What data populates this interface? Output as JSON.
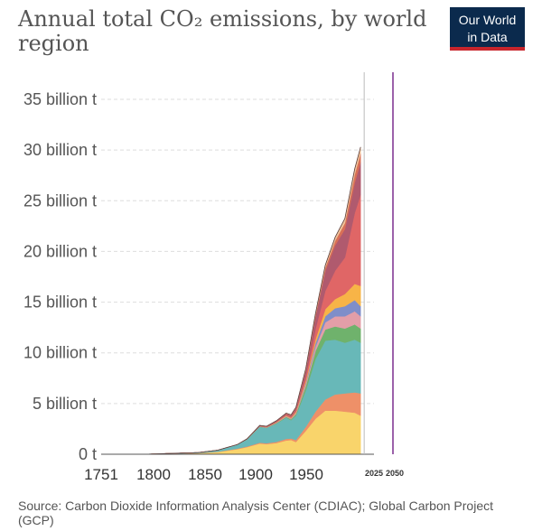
{
  "title": "Annual total CO₂ emissions, by world region",
  "logo": {
    "line1": "Our World",
    "line2": "in Data"
  },
  "source": "Source: Carbon Dioxide Information Analysis Center (CDIAC); Global Carbon Project (GCP)",
  "chart_data": {
    "type": "area",
    "stacked": true,
    "title": "Annual total CO₂ emissions, by world region",
    "xlabel": "",
    "ylabel": "",
    "xlim": [
      1751,
      2050
    ],
    "ylim": [
      0,
      35000000000
    ],
    "grid": true,
    "x_ticks": [
      "1751",
      "1800",
      "1850",
      "1900",
      "1950"
    ],
    "x_ticks_small": [
      "2025",
      "2050"
    ],
    "y_ticks": [
      {
        "value": 0,
        "label": "0 t"
      },
      {
        "value": 5000000000,
        "label": "5 billion t"
      },
      {
        "value": 10000000000,
        "label": "10 billion t"
      },
      {
        "value": 15000000000,
        "label": "15 billion t"
      },
      {
        "value": 20000000000,
        "label": "20 billion t"
      },
      {
        "value": 25000000000,
        "label": "25 billion t"
      },
      {
        "value": 30000000000,
        "label": "30 billion t"
      },
      {
        "value": 35000000000,
        "label": "35 billion t"
      }
    ],
    "x": [
      1751,
      1800,
      1850,
      1870,
      1890,
      1900,
      1913,
      1920,
      1930,
      1940,
      1945,
      1950,
      1960,
      1970,
      1980,
      1990,
      2000,
      2010,
      2016
    ],
    "series": [
      {
        "color": "#f9d46b",
        "values": [
          0.0,
          0.02,
          0.1,
          0.22,
          0.5,
          0.7,
          1.05,
          1.0,
          1.1,
          1.35,
          1.4,
          1.2,
          2.3,
          3.5,
          4.3,
          4.3,
          4.2,
          4.1,
          3.8
        ]
      },
      {
        "color": "#ee9068",
        "values": [
          0.0,
          0.0,
          0.02,
          0.03,
          0.05,
          0.07,
          0.09,
          0.09,
          0.12,
          0.16,
          0.16,
          0.2,
          0.4,
          0.7,
          1.1,
          1.6,
          1.8,
          2.0,
          2.2
        ]
      },
      {
        "color": "#68b8b8",
        "values": [
          0.0,
          0.0,
          0.05,
          0.15,
          0.4,
          0.7,
          1.55,
          1.5,
          1.8,
          2.1,
          1.8,
          2.4,
          3.6,
          5.2,
          5.8,
          5.4,
          5.0,
          5.2,
          5.0
        ]
      },
      {
        "color": "#6fb26c",
        "values": [
          0.0,
          0.0,
          0.0,
          0.0,
          0.0,
          0.01,
          0.03,
          0.03,
          0.05,
          0.08,
          0.09,
          0.15,
          0.4,
          0.8,
          1.1,
          1.3,
          1.4,
          1.5,
          1.4
        ]
      },
      {
        "color": "#e39ea8",
        "values": [
          0.0,
          0.0,
          0.0,
          0.0,
          0.0,
          0.01,
          0.02,
          0.02,
          0.03,
          0.05,
          0.05,
          0.08,
          0.2,
          0.4,
          0.7,
          1.0,
          1.2,
          1.3,
          1.2
        ]
      },
      {
        "color": "#7f8ec9",
        "values": [
          0.0,
          0.0,
          0.0,
          0.0,
          0.0,
          0.0,
          0.01,
          0.01,
          0.02,
          0.03,
          0.03,
          0.05,
          0.15,
          0.35,
          0.6,
          0.8,
          1.0,
          1.1,
          1.0
        ]
      },
      {
        "color": "#f7b447",
        "values": [
          0.0,
          0.0,
          0.0,
          0.0,
          0.0,
          0.01,
          0.02,
          0.02,
          0.03,
          0.05,
          0.06,
          0.1,
          0.2,
          0.4,
          0.7,
          0.9,
          1.2,
          1.6,
          2.0
        ]
      },
      {
        "color": "#e06666",
        "values": [
          0.0,
          0.0,
          0.0,
          0.0,
          0.0,
          0.01,
          0.02,
          0.03,
          0.05,
          0.08,
          0.1,
          0.15,
          0.4,
          1.0,
          1.8,
          2.8,
          3.6,
          7.0,
          9.0
        ]
      },
      {
        "color": "#b05a6e",
        "values": [
          0.0,
          0.0,
          0.0,
          0.0,
          0.0,
          0.01,
          0.03,
          0.04,
          0.06,
          0.1,
          0.12,
          0.2,
          0.6,
          1.2,
          2.0,
          2.5,
          2.8,
          3.0,
          3.2
        ]
      },
      {
        "color": "#d97056",
        "values": [
          0.0,
          0.0,
          0.0,
          0.0,
          0.0,
          0.0,
          0.01,
          0.01,
          0.02,
          0.03,
          0.04,
          0.05,
          0.1,
          0.2,
          0.3,
          0.45,
          0.6,
          0.8,
          0.9
        ]
      },
      {
        "color": "#f0c49a",
        "values": [
          0.0,
          0.0,
          0.0,
          0.0,
          0.0,
          0.0,
          0.01,
          0.01,
          0.02,
          0.03,
          0.03,
          0.05,
          0.1,
          0.15,
          0.25,
          0.35,
          0.45,
          0.55,
          0.6
        ]
      }
    ],
    "y_value_unit": "billion t",
    "marker_line": {
      "x": 2050,
      "color": "#7b2f8e"
    },
    "present_line": {
      "x": 2016,
      "color": "#bbbbbb"
    }
  }
}
